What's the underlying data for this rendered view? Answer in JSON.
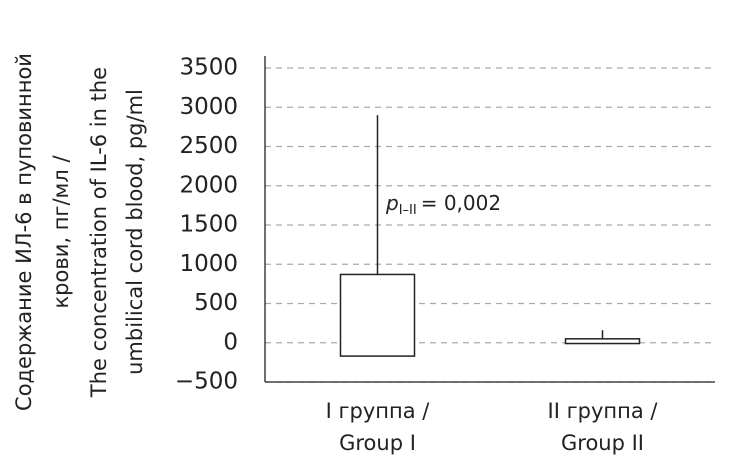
{
  "chart_data": {
    "type": "box",
    "ylabel_lines": [
      "Содержание ИЛ-6 в пуповинной",
      "крови, пг/мл /",
      "The concentration of IL-6 in the",
      "umbilical cord blood, pg/ml"
    ],
    "categories": [
      [
        "I группа /",
        "Group I"
      ],
      [
        "II группа /",
        "Group II"
      ]
    ],
    "box_low": [
      -170,
      -10
    ],
    "box_high": [
      870,
      50
    ],
    "whisker_high": [
      2900,
      160
    ],
    "color": "#ffffff",
    "ylim": [
      -500,
      3500
    ],
    "yticks": [
      {
        "value": -500,
        "label": "−500"
      },
      0,
      500,
      1000,
      1500,
      2000,
      2500,
      3000,
      3500
    ],
    "grid": true,
    "annotation": {
      "p": "p",
      "subscript": "I–II",
      "text": "= 0,002"
    }
  }
}
